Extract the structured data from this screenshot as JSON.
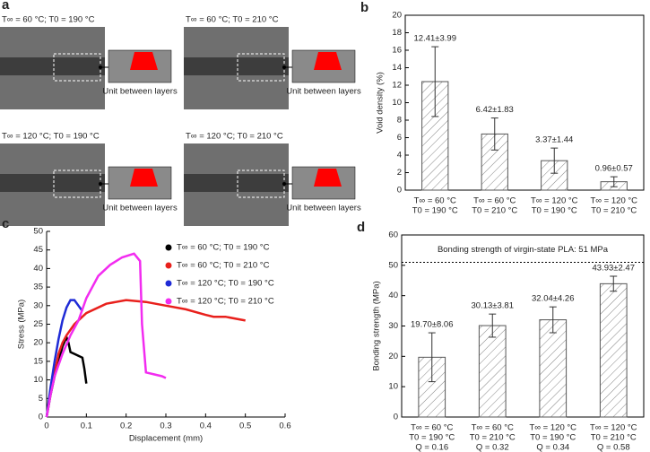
{
  "panel_a": {
    "panel_label": "a",
    "images": [
      {
        "title": "T∞ = 60 °C; T0 = 190 °C",
        "caption": "Unit between layers"
      },
      {
        "title": "T∞ = 60 °C; T0 = 210 °C",
        "caption": "Unit between layers"
      },
      {
        "title": "T∞ = 120 °C; T0 = 190 °C",
        "caption": "Unit between layers"
      },
      {
        "title": "T∞ = 120 °C; T0 = 210 °C",
        "caption": "Unit between layers"
      }
    ]
  },
  "chart_data": [
    {
      "type": "bar",
      "panel_label": "b",
      "y_label": "Void density (%)",
      "categories": [
        [
          "T∞ = 60 °C",
          "T0 = 190 °C"
        ],
        [
          "T∞ = 60 °C",
          "T0 = 210 °C"
        ],
        [
          "T∞ = 120 °C",
          "T0 = 190 °C"
        ],
        [
          "T∞ = 120 °C",
          "T0 = 210 °C"
        ]
      ],
      "values": [
        12.41,
        6.42,
        3.37,
        0.96
      ],
      "errors": [
        3.99,
        1.83,
        1.44,
        0.57
      ],
      "value_labels": [
        "12.41±3.99",
        "6.42±1.83",
        "3.37±1.44",
        "0.96±0.57"
      ],
      "ylim": [
        0,
        20
      ],
      "yticks": [
        0,
        2,
        4,
        6,
        8,
        10,
        12,
        14,
        16,
        18,
        20
      ],
      "grid": false
    },
    {
      "type": "line",
      "panel_label": "c",
      "y_label": "Stress (MPa)",
      "x_label": "Displacement (mm)",
      "xlim": [
        0,
        0.6
      ],
      "xticks": [
        0,
        0.1,
        0.2,
        0.3,
        0.4,
        0.5,
        0.6
      ],
      "ylim": [
        0,
        50
      ],
      "yticks": [
        0,
        5,
        10,
        15,
        20,
        25,
        30,
        35,
        40,
        45,
        50
      ],
      "grid": false,
      "legend": "upper right",
      "series": [
        {
          "name": "T∞ = 60 °C; T0 = 190 °C",
          "color": "#000000",
          "x": [
            0,
            0.01,
            0.02,
            0.03,
            0.04,
            0.05,
            0.055,
            0.06,
            0.07,
            0.08,
            0.09,
            0.095,
            0.1
          ],
          "values": [
            0,
            6,
            11,
            15,
            19,
            21.5,
            20,
            17.5,
            17,
            16.5,
            16,
            13,
            9
          ]
        },
        {
          "name": "T∞ = 60 °C; T0 = 210 °C",
          "color": "#e8201c",
          "x": [
            0,
            0.01,
            0.02,
            0.03,
            0.04,
            0.05,
            0.07,
            0.1,
            0.15,
            0.2,
            0.25,
            0.3,
            0.35,
            0.4,
            0.42,
            0.45,
            0.5
          ],
          "values": [
            0,
            7,
            12,
            17,
            20,
            22,
            25,
            28,
            30.5,
            31.5,
            31,
            30,
            29,
            27.5,
            27,
            27,
            26
          ]
        },
        {
          "name": "T∞ = 120 °C; T0 = 190 °C",
          "color": "#1f2bd6",
          "x": [
            0,
            0.01,
            0.02,
            0.03,
            0.04,
            0.05,
            0.06,
            0.07,
            0.08,
            0.09
          ],
          "values": [
            0,
            8,
            15,
            21,
            26,
            29.5,
            31.5,
            31.5,
            30,
            28.5
          ]
        },
        {
          "name": "T∞ = 120 °C; T0 = 210 °C",
          "color": "#f22cf0",
          "x": [
            0,
            0.01,
            0.02,
            0.04,
            0.06,
            0.08,
            0.1,
            0.13,
            0.16,
            0.19,
            0.22,
            0.235,
            0.24,
            0.25,
            0.27,
            0.29,
            0.3
          ],
          "values": [
            0,
            6,
            11,
            17,
            22,
            26,
            32,
            38,
            41,
            43,
            44,
            42,
            25,
            12,
            11.5,
            11,
            10.5
          ]
        }
      ]
    },
    {
      "type": "bar",
      "panel_label": "d",
      "y_label": "Bonding strength (MPa)",
      "categories": [
        [
          "T∞ = 60 °C",
          "T0 = 190 °C",
          "Q = 0.16"
        ],
        [
          "T∞ = 60 °C",
          "T0 = 210 °C",
          "Q = 0.32"
        ],
        [
          "T∞ = 120 °C",
          "T0 = 190 °C",
          "Q = 0.34"
        ],
        [
          "T∞ = 120 °C",
          "T0 = 210 °C",
          "Q = 0.58"
        ]
      ],
      "values": [
        19.7,
        30.13,
        32.04,
        43.93
      ],
      "errors": [
        8.06,
        3.81,
        4.26,
        2.47
      ],
      "value_labels": [
        "19.70±8.06",
        "30.13±3.81",
        "32.04±4.26",
        "43.93±2.47"
      ],
      "reference": {
        "value": 51,
        "label": "Bonding strength of virgin-state PLA: 51 MPa"
      },
      "ylim": [
        0,
        60
      ],
      "yticks": [
        0,
        10,
        20,
        30,
        40,
        50,
        60
      ],
      "grid": false
    }
  ]
}
